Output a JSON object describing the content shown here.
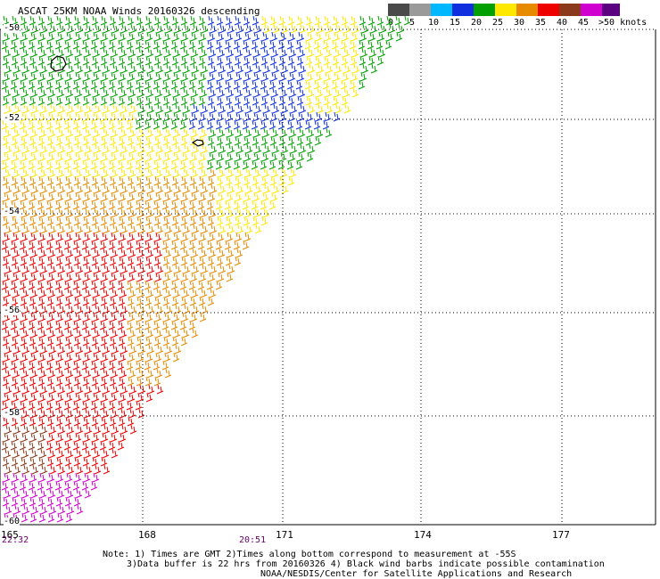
{
  "title": "ASCAT 25KM NOAA Winds 20160326 descending",
  "legend": {
    "labels": [
      "0",
      "5",
      "10",
      "15",
      "20",
      "25",
      "30",
      "35",
      "40",
      "45",
      ">50 knots"
    ],
    "colors": [
      "#4a4a4a",
      "#9a9a9a",
      "#00b8ff",
      "#1030e0",
      "#00a000",
      "#ffe800",
      "#e88a00",
      "#ee0000",
      "#8a3a1a",
      "#d000d0",
      "#5a0080"
    ]
  },
  "latitudes": [
    "-50",
    "-52",
    "-54",
    "-56",
    "-58",
    "-60"
  ],
  "longitudes": [
    "165",
    "168",
    "171",
    "174",
    "177"
  ],
  "times": [
    "22:32",
    "20:51"
  ],
  "notes": [
    "Note: 1) Times are GMT 2)Times along bottom correspond to measurement at -55S",
    "3)Data buffer is 22 hrs from 20160326 4) Black wind barbs indicate possible contamination",
    "NOAA/NESDIS/Center for Satellite Applications and Research"
  ]
}
